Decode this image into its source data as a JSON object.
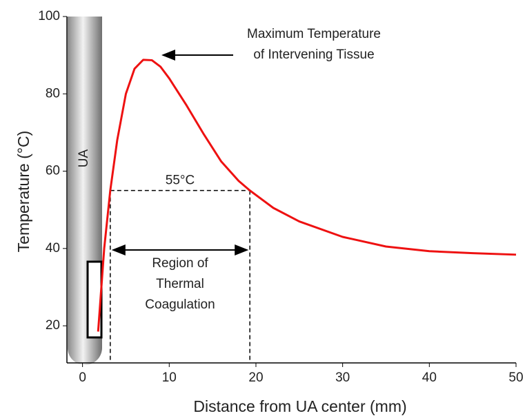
{
  "chart_data": {
    "type": "line",
    "x_label": "Distance from UA center (mm)",
    "y_label": "Temperature (°C)",
    "x": [
      1.8,
      2.5,
      3.2,
      4,
      5,
      6,
      7,
      8,
      9,
      10,
      12,
      14,
      16,
      18,
      19.3,
      22,
      25,
      30,
      35,
      40,
      45,
      50
    ],
    "series": [
      {
        "color": "#ee1111",
        "values": [
          18.5,
          40,
          55,
          68,
          80,
          86.5,
          88.8,
          88.7,
          87,
          84,
          77,
          69.5,
          62.5,
          57.5,
          55,
          50.5,
          47,
          43,
          40.5,
          39.3,
          38.8,
          38.4
        ]
      }
    ],
    "xlim": [
      -1.8,
      50
    ],
    "xticks": [
      0,
      10,
      20,
      30,
      40,
      50
    ],
    "ylim": [
      10.4,
      100
    ],
    "yticks": [
      20,
      40,
      60,
      80,
      100
    ],
    "threshold": {
      "value": 55,
      "label": "55°C",
      "x_range": [
        3.2,
        19.3
      ]
    },
    "annotations": {
      "peak": [
        "Maximum Temperature",
        "of Intervening Tissue"
      ],
      "region": [
        "Region of",
        "Thermal",
        "Coagulation"
      ],
      "probe": "UA"
    }
  }
}
